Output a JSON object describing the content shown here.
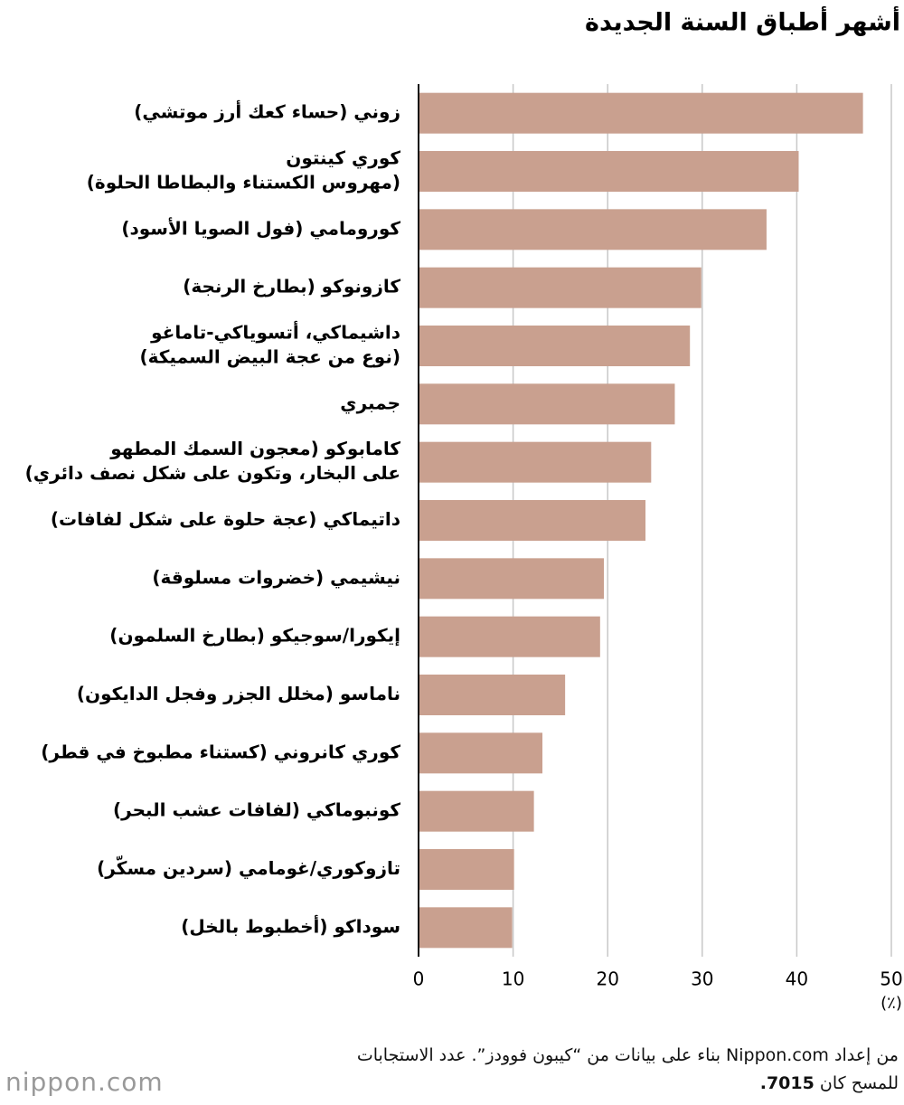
{
  "chart_data": {
    "type": "barh",
    "title": "أشهر أطباق السنة الجديدة",
    "categories": [
      [
        "زوني (حساء كعك أرز موتشي)"
      ],
      [
        "كوري كينتون",
        "(مهروس الكستناء والبطاطا الحلوة)"
      ],
      [
        "كورومامي (فول الصويا الأسود)"
      ],
      [
        "كازونوكو (بطارخ الرنجة)"
      ],
      [
        "داشيماكي، أتسوياكي-تاماغو",
        "(نوع من عجة البيض السميكة)"
      ],
      [
        "جمبري"
      ],
      [
        "كامابوكو (معجون السمك المطهو",
        "على البخار، وتكون على شكل نصف دائري)"
      ],
      [
        "داتيماكي (عجة حلوة على شكل لفافات)"
      ],
      [
        "نيشيمي (خضروات مسلوقة)"
      ],
      [
        "إيكورا/سوجيكو (بطارخ السلمون)"
      ],
      [
        "ناماسو (مخلل الجزر وفجل الدايكون)"
      ],
      [
        "كوري كانروني (كستناء مطبوخ في قطر)"
      ],
      [
        "كونبوماكي (لفافات عشب البحر)"
      ],
      [
        "تازوكوري/غومامي (سردين مسكّر)"
      ],
      [
        "سوداكو (أخطبوط بالخل)"
      ]
    ],
    "values": [
      47.0,
      40.2,
      36.8,
      29.9,
      28.7,
      27.1,
      24.6,
      24.0,
      19.6,
      19.2,
      15.5,
      13.1,
      12.2,
      10.1,
      9.9
    ],
    "color": "#c9a08f",
    "xlim": [
      0,
      50
    ],
    "xticks": [
      0,
      10,
      20,
      30,
      40,
      50
    ],
    "xlabel": "(٪)",
    "grid": true
  },
  "footer": {
    "line1": "من إعداد Nippon.com بناء على بيانات من “كيبون فوودز”. عدد الاستجابات",
    "line2": "للمسح كان",
    "line2_bold": "7015."
  },
  "logo": "nippon.com"
}
